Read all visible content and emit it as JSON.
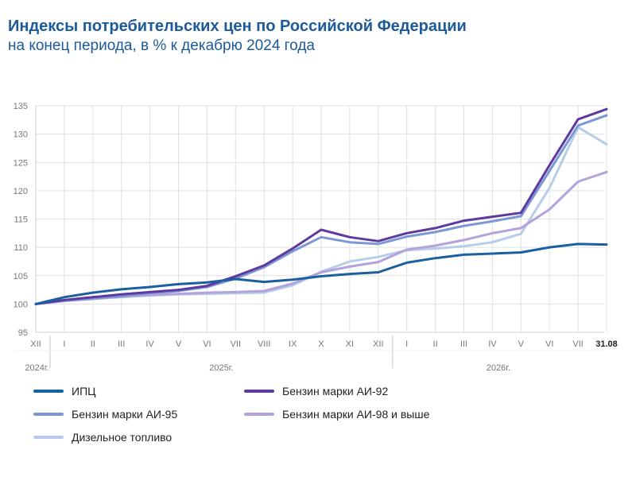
{
  "header": {
    "title": "Индексы потребительских цен по Российской Федерации",
    "subtitle": "на конец периода, в % к декабрю 2024 года"
  },
  "chart_data": {
    "type": "line",
    "ylim": [
      95,
      135
    ],
    "yticks": [
      95,
      100,
      105,
      110,
      115,
      120,
      125,
      130,
      135
    ],
    "grid": true,
    "legend_position": "bottom",
    "x": [
      "XII",
      "I",
      "II",
      "III",
      "IV",
      "V",
      "VI",
      "VII",
      "VIII",
      "IX",
      "X",
      "XI",
      "XII",
      "I",
      "II",
      "III",
      "IV",
      "V",
      "VI",
      "VII",
      "31.08"
    ],
    "year_labels": [
      "2024г.",
      "2025г.",
      "2026г."
    ],
    "series": [
      {
        "name": "ИПЦ",
        "color": "#1a5fa0",
        "values": [
          100.0,
          101.2,
          102.0,
          102.6,
          103.0,
          103.5,
          103.8,
          104.4,
          103.9,
          104.3,
          104.9,
          105.3,
          105.6,
          107.3,
          108.1,
          108.7,
          108.9,
          109.1,
          110.0,
          110.6,
          110.5
        ]
      },
      {
        "name": "Бензин марки АИ-92",
        "color": "#5e3a9e",
        "values": [
          100.0,
          100.7,
          101.2,
          101.7,
          102.1,
          102.5,
          103.2,
          104.9,
          106.8,
          109.8,
          113.1,
          111.8,
          111.1,
          112.5,
          113.4,
          114.7,
          115.4,
          116.1,
          124.5,
          132.6,
          134.4
        ]
      },
      {
        "name": "Бензин марки АИ-95",
        "color": "#7c98d4",
        "values": [
          100.0,
          100.6,
          101.0,
          101.4,
          101.9,
          102.3,
          103.0,
          104.5,
          106.5,
          109.3,
          111.8,
          110.9,
          110.6,
          111.9,
          112.7,
          113.8,
          114.6,
          115.5,
          123.5,
          131.5,
          133.3
        ]
      },
      {
        "name": "Бензин марки АИ-98 и выше",
        "color": "#b3a2db",
        "values": [
          100.0,
          100.6,
          100.9,
          101.3,
          101.6,
          101.8,
          102.0,
          102.1,
          102.3,
          103.6,
          105.6,
          106.6,
          107.4,
          109.6,
          110.3,
          111.3,
          112.5,
          113.4,
          116.7,
          121.6,
          123.3
        ]
      },
      {
        "name": "Дизельное топливо",
        "color": "#b6cde9",
        "values": [
          100.0,
          100.5,
          100.9,
          101.2,
          101.5,
          101.7,
          101.8,
          101.9,
          102.0,
          103.3,
          105.7,
          107.5,
          108.3,
          109.5,
          109.8,
          110.2,
          110.9,
          112.4,
          120.5,
          131.2,
          128.2
        ]
      }
    ]
  }
}
